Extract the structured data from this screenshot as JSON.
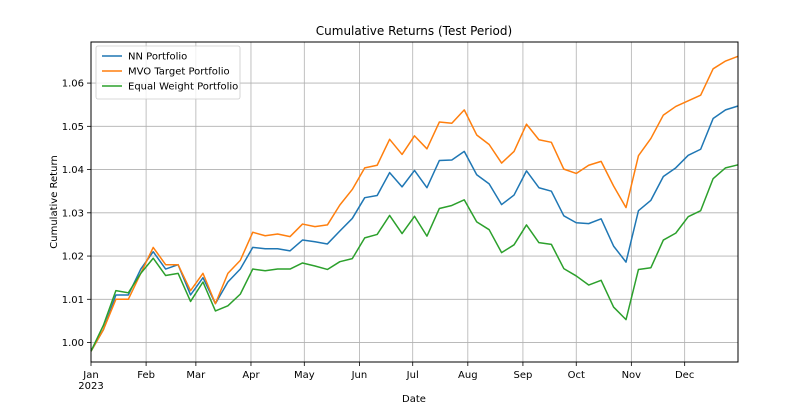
{
  "chart_data": {
    "type": "line",
    "title": "Cumulative Returns (Test Period)",
    "xlabel": "Date",
    "ylabel": "Cumulative Return",
    "xlim": [
      "2023-01-01",
      "2023-12-31"
    ],
    "ylim": [
      0.9955,
      1.0695
    ],
    "x_ticks": [
      {
        "date": "2023-01-01",
        "label": "Jan",
        "sublabel": "2023"
      },
      {
        "date": "2023-02-01",
        "label": "Feb"
      },
      {
        "date": "2023-03-01",
        "label": "Mar"
      },
      {
        "date": "2023-04-01",
        "label": "Apr"
      },
      {
        "date": "2023-05-01",
        "label": "May"
      },
      {
        "date": "2023-06-01",
        "label": "Jun"
      },
      {
        "date": "2023-07-01",
        "label": "Jul"
      },
      {
        "date": "2023-08-01",
        "label": "Aug"
      },
      {
        "date": "2023-09-01",
        "label": "Sep"
      },
      {
        "date": "2023-10-01",
        "label": "Oct"
      },
      {
        "date": "2023-11-01",
        "label": "Nov"
      },
      {
        "date": "2023-12-01",
        "label": "Dec"
      }
    ],
    "y_ticks": [
      {
        "value": 1.0,
        "label": "1.00"
      },
      {
        "value": 1.01,
        "label": "1.01"
      },
      {
        "value": 1.02,
        "label": "1.02"
      },
      {
        "value": 1.03,
        "label": "1.03"
      },
      {
        "value": 1.04,
        "label": "1.04"
      },
      {
        "value": 1.05,
        "label": "1.05"
      },
      {
        "value": 1.06,
        "label": "1.06"
      }
    ],
    "grid": true,
    "legend_position": "top-left",
    "x": [
      "2023-01-01",
      "2023-01-08",
      "2023-01-15",
      "2023-01-22",
      "2023-01-29",
      "2023-02-05",
      "2023-02-12",
      "2023-02-19",
      "2023-02-26",
      "2023-03-05",
      "2023-03-12",
      "2023-03-19",
      "2023-03-26",
      "2023-04-02",
      "2023-04-09",
      "2023-04-16",
      "2023-04-23",
      "2023-04-30",
      "2023-05-07",
      "2023-05-14",
      "2023-05-21",
      "2023-05-28",
      "2023-06-04",
      "2023-06-11",
      "2023-06-18",
      "2023-06-25",
      "2023-07-02",
      "2023-07-09",
      "2023-07-16",
      "2023-07-23",
      "2023-07-30",
      "2023-08-06",
      "2023-08-13",
      "2023-08-20",
      "2023-08-27",
      "2023-09-03",
      "2023-09-10",
      "2023-09-17",
      "2023-09-24",
      "2023-10-01",
      "2023-10-08",
      "2023-10-15",
      "2023-10-22",
      "2023-10-29",
      "2023-11-05",
      "2023-11-12",
      "2023-11-19",
      "2023-11-26",
      "2023-12-03",
      "2023-12-10",
      "2023-12-17",
      "2023-12-24",
      "2023-12-31"
    ],
    "series": [
      {
        "name": "NN Portfolio",
        "color": "#1f77b4",
        "values": [
          0.998,
          1.003,
          1.011,
          1.011,
          1.017,
          1.021,
          1.017,
          1.018,
          1.011,
          1.015,
          1.009,
          1.014,
          1.017,
          1.022,
          1.0217,
          1.0217,
          1.0212,
          1.0237,
          1.0233,
          1.0228,
          1.0258,
          1.0287,
          1.0335,
          1.034,
          1.0393,
          1.036,
          1.0398,
          1.0358,
          1.0421,
          1.0422,
          1.0442,
          1.0388,
          1.0367,
          1.0319,
          1.0341,
          1.0397,
          1.0358,
          1.035,
          1.0293,
          1.0277,
          1.0275,
          1.0286,
          1.0223,
          1.0186,
          1.0305,
          1.0329,
          1.0384,
          1.0404,
          1.0433,
          1.0447,
          1.0518,
          1.0538,
          1.0547
        ]
      },
      {
        "name": "MVO Target Portfolio",
        "color": "#ff7f0e",
        "values": [
          0.998,
          1.003,
          1.01,
          1.01,
          1.016,
          1.022,
          1.018,
          1.018,
          1.012,
          1.016,
          1.009,
          1.016,
          1.019,
          1.0255,
          1.0247,
          1.0251,
          1.0245,
          1.0274,
          1.0268,
          1.0272,
          1.0318,
          1.0354,
          1.0404,
          1.041,
          1.047,
          1.0435,
          1.0478,
          1.0448,
          1.051,
          1.0507,
          1.0538,
          1.048,
          1.0458,
          1.0415,
          1.0442,
          1.0505,
          1.0469,
          1.0463,
          1.0401,
          1.0391,
          1.041,
          1.0419,
          1.0362,
          1.0312,
          1.0432,
          1.0472,
          1.0526,
          1.0546,
          1.0559,
          1.0572,
          1.0633,
          1.0651,
          1.0662
        ]
      },
      {
        "name": "Equal Weight Portfolio",
        "color": "#2ca02c",
        "values": [
          0.998,
          1.004,
          1.012,
          1.0115,
          1.016,
          1.0195,
          1.0155,
          1.016,
          1.0095,
          1.014,
          1.0073,
          1.0085,
          1.0112,
          1.017,
          1.0166,
          1.017,
          1.017,
          1.0184,
          1.0177,
          1.0169,
          1.0187,
          1.0194,
          1.0242,
          1.025,
          1.0294,
          1.0252,
          1.0292,
          1.0246,
          1.031,
          1.0317,
          1.033,
          1.0279,
          1.0261,
          1.0208,
          1.0226,
          1.0272,
          1.0231,
          1.0227,
          1.0171,
          1.0154,
          1.0133,
          1.0144,
          1.0082,
          1.0053,
          1.0169,
          1.0173,
          1.0237,
          1.0253,
          1.0291,
          1.0305,
          1.0379,
          1.0404,
          1.0411
        ]
      }
    ]
  }
}
